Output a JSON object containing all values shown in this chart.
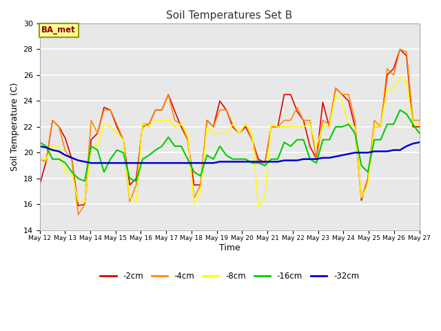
{
  "title": "Soil Temperatures Set B",
  "xlabel": "Time",
  "ylabel": "Soil Temperature (C)",
  "annotation_text": "BA_met",
  "annotation_color": "#8b0000",
  "annotation_bg": "#ffff99",
  "annotation_border": "#999900",
  "ylim": [
    14,
    30
  ],
  "fig_bg": "#ffffff",
  "plot_bg": "#e8e8e8",
  "series": {
    "depth_2cm": {
      "label": "-2cm",
      "color": "#dd0000",
      "lw": 1.2
    },
    "depth_4cm": {
      "label": "-4cm",
      "color": "#ff8800",
      "lw": 1.2
    },
    "depth_8cm": {
      "label": "-8cm",
      "color": "#ffff00",
      "lw": 1.2
    },
    "depth_16cm": {
      "label": "-16cm",
      "color": "#00cc00",
      "lw": 1.5
    },
    "depth_32cm": {
      "label": "-32cm",
      "color": "#0000cc",
      "lw": 1.8
    }
  },
  "tick_labels": [
    "May 12",
    "May 13",
    "May 14",
    "May 15",
    "May 16",
    "May 17",
    "May 18",
    "May 19",
    "May 20",
    "May 21",
    "May 22",
    "May 23",
    "May 24",
    "May 25",
    "May 26",
    "May 27"
  ],
  "depth_2cm": [
    17.5,
    19.3,
    22.5,
    22.0,
    21.1,
    19.5,
    15.9,
    16.0,
    21.0,
    21.5,
    23.5,
    23.3,
    22.0,
    21.0,
    17.5,
    18.0,
    22.0,
    22.2,
    23.3,
    23.3,
    24.5,
    23.2,
    22.0,
    21.0,
    17.5,
    17.5,
    22.5,
    22.0,
    24.0,
    23.3,
    22.0,
    21.5,
    22.0,
    21.0,
    19.5,
    19.2,
    22.0,
    22.0,
    24.5,
    24.5,
    23.2,
    22.5,
    20.5,
    19.5,
    23.9,
    22.0,
    25.0,
    24.5,
    24.0,
    22.0,
    16.3,
    18.0,
    22.0,
    22.0,
    26.0,
    26.5,
    28.0,
    27.5,
    22.0,
    22.0
  ],
  "depth_4cm": [
    19.5,
    19.3,
    22.5,
    22.0,
    20.1,
    19.5,
    15.2,
    16.0,
    22.5,
    21.5,
    23.3,
    23.3,
    22.2,
    21.0,
    16.2,
    17.5,
    22.2,
    22.2,
    23.3,
    23.3,
    24.5,
    22.5,
    22.2,
    21.0,
    16.5,
    17.5,
    22.5,
    22.0,
    23.3,
    23.3,
    22.2,
    21.5,
    22.2,
    21.0,
    19.2,
    19.2,
    22.0,
    22.0,
    22.5,
    22.5,
    23.5,
    22.5,
    22.5,
    19.5,
    22.5,
    22.2,
    25.0,
    24.5,
    24.5,
    22.5,
    16.5,
    18.0,
    22.5,
    22.0,
    26.5,
    26.0,
    28.0,
    27.8,
    22.5,
    22.5
  ],
  "depth_8cm": [
    19.5,
    19.5,
    20.5,
    20.5,
    18.5,
    18.5,
    16.2,
    16.2,
    20.5,
    20.5,
    22.2,
    22.0,
    21.5,
    21.0,
    16.5,
    16.2,
    22.2,
    22.0,
    22.5,
    22.5,
    22.5,
    22.0,
    22.2,
    21.5,
    16.0,
    17.0,
    22.0,
    21.5,
    21.5,
    21.5,
    22.2,
    21.5,
    22.2,
    21.5,
    15.8,
    16.5,
    22.2,
    22.0,
    22.0,
    22.0,
    22.0,
    22.0,
    22.2,
    20.5,
    22.0,
    22.0,
    24.5,
    24.0,
    22.2,
    22.0,
    16.5,
    17.5,
    22.0,
    22.0,
    25.0,
    25.0,
    25.8,
    25.5,
    22.2,
    22.2
  ],
  "depth_16cm": [
    20.8,
    20.5,
    19.5,
    19.5,
    19.2,
    18.5,
    18.0,
    17.8,
    20.5,
    20.2,
    18.5,
    19.5,
    20.2,
    20.0,
    18.0,
    17.8,
    19.5,
    19.8,
    20.2,
    20.5,
    21.2,
    20.5,
    20.5,
    19.5,
    18.5,
    18.2,
    19.8,
    19.5,
    20.5,
    19.8,
    19.5,
    19.5,
    19.5,
    19.2,
    19.2,
    19.0,
    19.5,
    19.5,
    20.8,
    20.5,
    21.0,
    21.0,
    19.5,
    19.2,
    21.0,
    21.0,
    22.0,
    22.0,
    22.2,
    21.5,
    19.0,
    18.5,
    21.0,
    21.0,
    22.2,
    22.2,
    23.3,
    23.0,
    22.2,
    21.5
  ],
  "depth_32cm": [
    20.5,
    20.4,
    20.2,
    20.1,
    19.8,
    19.6,
    19.4,
    19.3,
    19.2,
    19.2,
    19.2,
    19.2,
    19.2,
    19.2,
    19.2,
    19.2,
    19.2,
    19.2,
    19.2,
    19.2,
    19.2,
    19.2,
    19.2,
    19.2,
    19.2,
    19.2,
    19.2,
    19.2,
    19.3,
    19.3,
    19.3,
    19.3,
    19.3,
    19.3,
    19.3,
    19.3,
    19.3,
    19.3,
    19.4,
    19.4,
    19.4,
    19.5,
    19.5,
    19.5,
    19.6,
    19.6,
    19.7,
    19.8,
    19.9,
    20.0,
    20.0,
    20.0,
    20.1,
    20.1,
    20.1,
    20.2,
    20.2,
    20.5,
    20.7,
    20.8
  ]
}
